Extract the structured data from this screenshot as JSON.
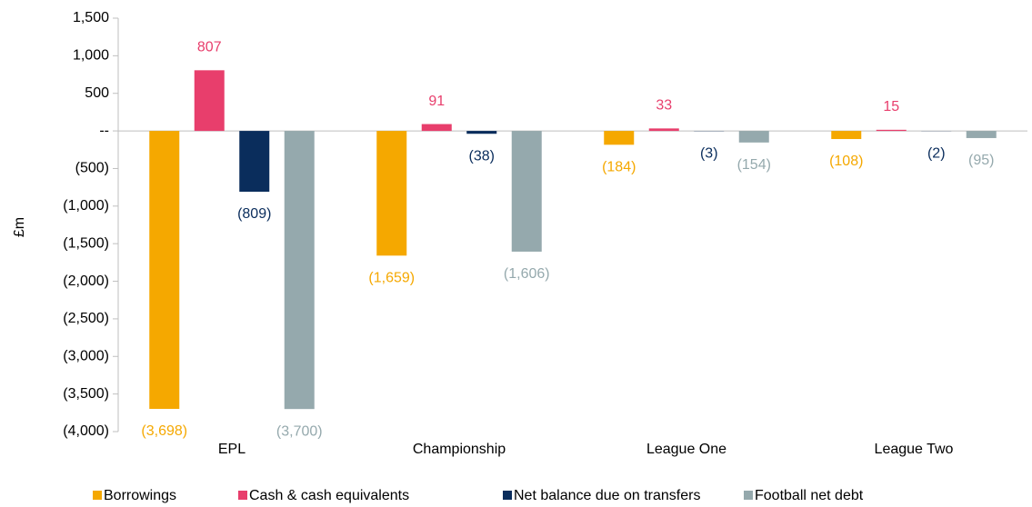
{
  "chart_data": {
    "type": "bar",
    "y_label": "£m",
    "categories": [
      "EPL",
      "Championship",
      "League One",
      "League Two"
    ],
    "series": [
      {
        "name": "Borrowings",
        "color": "#f5a800",
        "values": [
          -3698,
          -1659,
          -184,
          -108
        ],
        "value_labels": [
          "(3,698)",
          "(1,659)",
          "(184)",
          "(108)"
        ]
      },
      {
        "name": "Cash & cash equivalents",
        "color": "#e83e6c",
        "values": [
          807,
          91,
          33,
          15
        ],
        "value_labels": [
          "807",
          "91",
          "33",
          "15"
        ]
      },
      {
        "name": "Net balance due on transfers",
        "color": "#0a2d5c",
        "values": [
          -809,
          -38,
          -3,
          -2
        ],
        "value_labels": [
          "(809)",
          "(38)",
          "(3)",
          "(2)"
        ]
      },
      {
        "name": "Football net debt",
        "color": "#95a9ad",
        "values": [
          -3700,
          -1606,
          -154,
          -95
        ],
        "value_labels": [
          "(3,700)",
          "(1,606)",
          "(154)",
          "(95)"
        ]
      }
    ],
    "ylim": [
      -4000,
      1500
    ],
    "yticks": [
      {
        "value": -4000,
        "label": "(4,000)"
      },
      {
        "value": -3500,
        "label": "(3,500)"
      },
      {
        "value": -3000,
        "label": "(3,000)"
      },
      {
        "value": -2500,
        "label": "(2,500)"
      },
      {
        "value": -2000,
        "label": "(2,000)"
      },
      {
        "value": -1500,
        "label": "(1,500)"
      },
      {
        "value": -1000,
        "label": "(1,000)"
      },
      {
        "value": -500,
        "label": "(500)"
      },
      {
        "value": 0,
        "label": "--"
      },
      500,
      {
        "value": 1000,
        "label": "1,000"
      },
      {
        "value": 1500,
        "label": "1,500"
      }
    ],
    "grid": false,
    "legend": "bottom"
  }
}
